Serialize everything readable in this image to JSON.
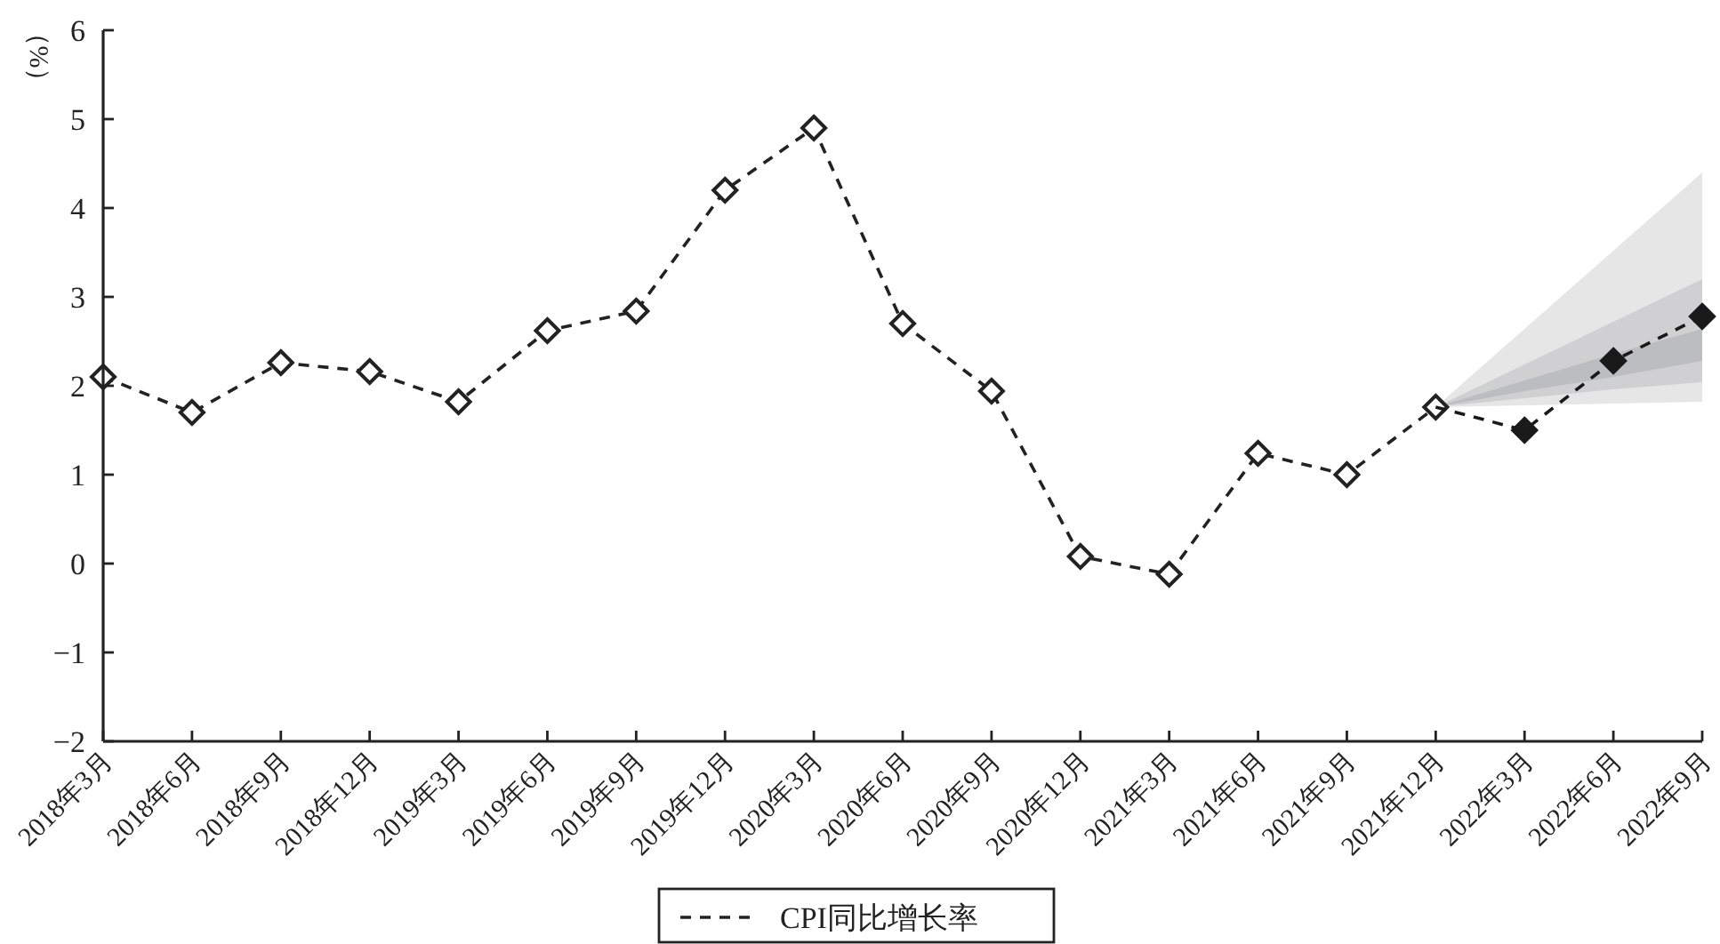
{
  "chart_data": {
    "type": "line",
    "ylabel": "（%）",
    "categories": [
      "2018年3月",
      "2018年6月",
      "2018年9月",
      "2018年12月",
      "2019年3月",
      "2019年6月",
      "2019年9月",
      "2019年12月",
      "2020年3月",
      "2020年6月",
      "2020年9月",
      "2020年12月",
      "2021年3月",
      "2021年6月",
      "2021年9月",
      "2021年12月",
      "2022年3月",
      "2022年6月",
      "2022年9月"
    ],
    "series": [
      {
        "type": "area",
        "color": "#e6e6e7",
        "values": [
          null,
          null,
          null,
          null,
          null,
          null,
          null,
          null,
          null,
          null,
          null,
          null,
          null,
          null,
          null,
          null,
          null,
          null,
          null
        ],
        "lower": [
          null,
          null,
          null,
          null,
          null,
          null,
          null,
          null,
          null,
          null,
          null,
          null,
          null,
          null,
          null,
          1.76,
          1.78,
          1.8,
          1.82
        ],
        "upper": [
          null,
          null,
          null,
          null,
          null,
          null,
          null,
          null,
          null,
          null,
          null,
          null,
          null,
          null,
          null,
          1.76,
          2.64,
          3.52,
          4.4
        ]
      },
      {
        "type": "area",
        "color": "#d0d0d2",
        "values": [
          null,
          null,
          null,
          null,
          null,
          null,
          null,
          null,
          null,
          null,
          null,
          null,
          null,
          null,
          null,
          null,
          null,
          null,
          null
        ],
        "lower": [
          null,
          null,
          null,
          null,
          null,
          null,
          null,
          null,
          null,
          null,
          null,
          null,
          null,
          null,
          null,
          1.76,
          1.86,
          1.96,
          2.04
        ],
        "upper": [
          null,
          null,
          null,
          null,
          null,
          null,
          null,
          null,
          null,
          null,
          null,
          null,
          null,
          null,
          null,
          1.76,
          2.24,
          2.72,
          3.2
        ]
      },
      {
        "type": "area",
        "color": "#bcbdc0",
        "values": [
          null,
          null,
          null,
          null,
          null,
          null,
          null,
          null,
          null,
          null,
          null,
          null,
          null,
          null,
          null,
          null,
          null,
          null,
          null
        ],
        "lower": [
          null,
          null,
          null,
          null,
          null,
          null,
          null,
          null,
          null,
          null,
          null,
          null,
          null,
          null,
          null,
          1.76,
          1.94,
          2.1,
          2.28
        ],
        "upper": [
          null,
          null,
          null,
          null,
          null,
          null,
          null,
          null,
          null,
          null,
          null,
          null,
          null,
          null,
          null,
          1.76,
          2.06,
          2.36,
          2.64
        ]
      },
      {
        "type": "line",
        "name": "CPI同比增长率",
        "color": "#222222",
        "values": [
          2.1,
          1.7,
          2.26,
          2.16,
          1.82,
          2.62,
          2.84,
          4.2,
          4.9,
          2.7,
          1.94,
          0.08,
          -0.12,
          1.24,
          1.0,
          1.76,
          null,
          null,
          null
        ]
      },
      {
        "type": "line",
        "color": "#1a1a1a",
        "values": [
          null,
          null,
          null,
          null,
          null,
          null,
          null,
          null,
          null,
          null,
          null,
          null,
          null,
          null,
          null,
          1.76,
          1.5,
          2.28,
          2.78
        ]
      }
    ],
    "ylim": [
      -2,
      6
    ],
    "yticks": [
      -2,
      -1,
      0,
      1,
      2,
      3,
      4,
      5,
      6
    ],
    "legend": "bottom",
    "marker": "diamond",
    "line_style": "dashed"
  }
}
